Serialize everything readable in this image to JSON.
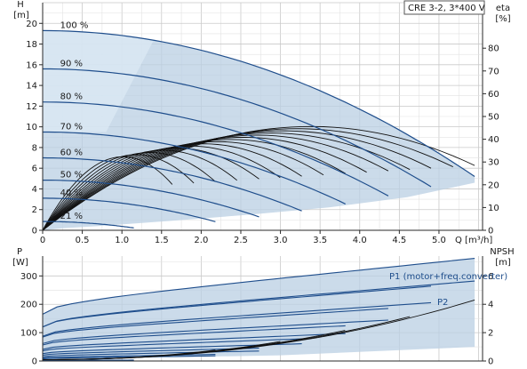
{
  "title": "CRE 3-2, 3*400 V",
  "chart_data": [
    {
      "type": "line",
      "panel": "head-efficiency",
      "title": "CRE 3-2, 3*400 V",
      "xlabel": "Q [m³/h]",
      "ylabel_left_top": "H",
      "ylabel_left_bottom": "[m]",
      "ylabel_right_top": "eta",
      "ylabel_right_bottom": "[%]",
      "xlim": [
        0,
        5.55
      ],
      "ylim": [
        0,
        22
      ],
      "y2lim": [
        0,
        100
      ],
      "x_ticks": [
        "0",
        "0.5",
        "1.0",
        "1.5",
        "2.0",
        "2.5",
        "3.0",
        "3.5",
        "4.0",
        "4.5",
        "5.0"
      ],
      "y_ticks": [
        "0",
        "2",
        "4",
        "6",
        "8",
        "10",
        "12",
        "14",
        "16",
        "18",
        "20"
      ],
      "y2_ticks": [
        "0",
        "10",
        "20",
        "30",
        "40",
        "50",
        "60",
        "70",
        "80"
      ],
      "grid": true,
      "speed_labels": [
        "100 %",
        "90 %",
        "80 %",
        "70 %",
        "60 %",
        "50 %",
        "40 %",
        "21 %"
      ],
      "series": [
        {
          "name": "100 %",
          "speed": 1.0,
          "H0": 19.3,
          "Qmax": 5.45
        },
        {
          "name": "90 %",
          "speed": 0.9,
          "H0": 15.6,
          "Qmax": 4.9
        },
        {
          "name": "80 %",
          "speed": 0.8,
          "H0": 12.4,
          "Qmax": 4.36
        },
        {
          "name": "70 %",
          "speed": 0.7,
          "H0": 9.5,
          "Qmax": 3.82
        },
        {
          "name": "60 %",
          "speed": 0.6,
          "H0": 7.0,
          "Qmax": 3.27
        },
        {
          "name": "50 %",
          "speed": 0.5,
          "H0": 4.85,
          "Qmax": 2.73
        },
        {
          "name": "40 %",
          "speed": 0.4,
          "H0": 3.1,
          "Qmax": 2.18
        },
        {
          "name": "21 %",
          "speed": 0.21,
          "H0": 0.85,
          "Qmax": 1.15
        }
      ]
    },
    {
      "type": "line",
      "panel": "power-npsh",
      "xlabel": "",
      "ylabel_left_top": "P",
      "ylabel_left_bottom": "[W]",
      "ylabel_right_top": "NPSH",
      "ylabel_right_bottom": "[m]",
      "xlim": [
        0,
        5.55
      ],
      "ylim": [
        0,
        370
      ],
      "y2lim": [
        0,
        7.4
      ],
      "y_ticks": [
        "0",
        "100",
        "200",
        "300"
      ],
      "y2_ticks": [
        "0",
        "2",
        "4",
        "6"
      ],
      "grid": true,
      "series": [
        {
          "name": "P1 (motor+freq.converter)",
          "P_start": 165,
          "P_end": 362
        },
        {
          "name": "P2",
          "P_start": 120,
          "P_end": 282
        }
      ]
    }
  ]
}
